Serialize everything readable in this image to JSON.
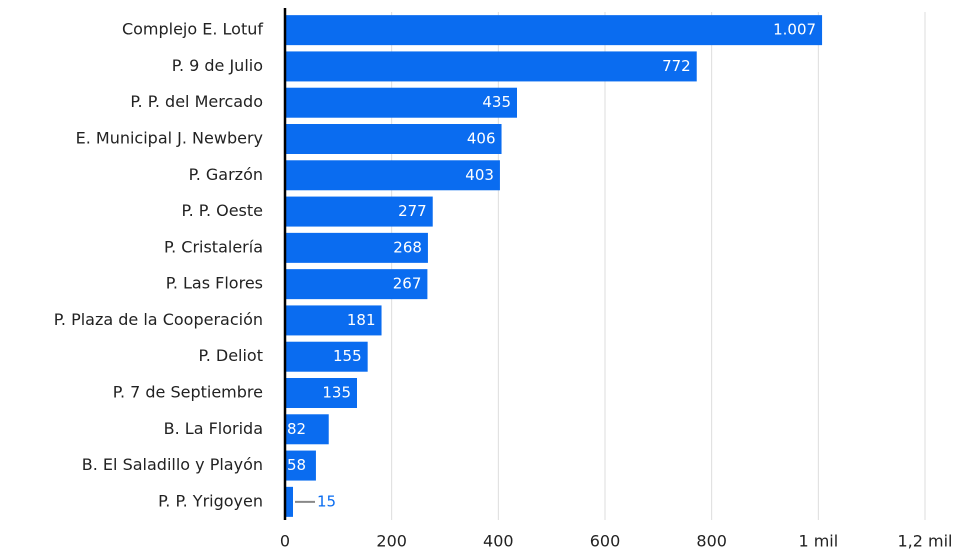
{
  "chart_data": {
    "type": "bar",
    "orientation": "horizontal",
    "categories": [
      "Complejo E. Lotuf",
      "P. 9 de Julio",
      "P. P. del Mercado",
      "E. Municipal J. Newbery",
      "P. Garzón",
      "P. P. Oeste",
      "P. Cristalería",
      "P. Las Flores",
      "P. Plaza de la Cooperación",
      "P. Deliot",
      "P. 7 de Septiembre",
      "B. La Florida",
      "B. El Saladillo y Playón",
      "P. P. Yrigoyen"
    ],
    "values": [
      1007,
      772,
      435,
      406,
      403,
      277,
      268,
      267,
      181,
      155,
      135,
      82,
      58,
      15
    ],
    "value_labels": [
      "1.007",
      "772",
      "435",
      "406",
      "403",
      "277",
      "268",
      "267",
      "181",
      "155",
      "135",
      "82",
      "58",
      "15"
    ],
    "color": "#0a6cf0",
    "xlim": [
      0,
      1200
    ],
    "xticks": [
      0,
      200,
      400,
      600,
      800,
      {
        "value": 1000,
        "label": "1 mil"
      },
      {
        "value": 1200,
        "label": "1,2 mil"
      }
    ],
    "grid": true
  }
}
